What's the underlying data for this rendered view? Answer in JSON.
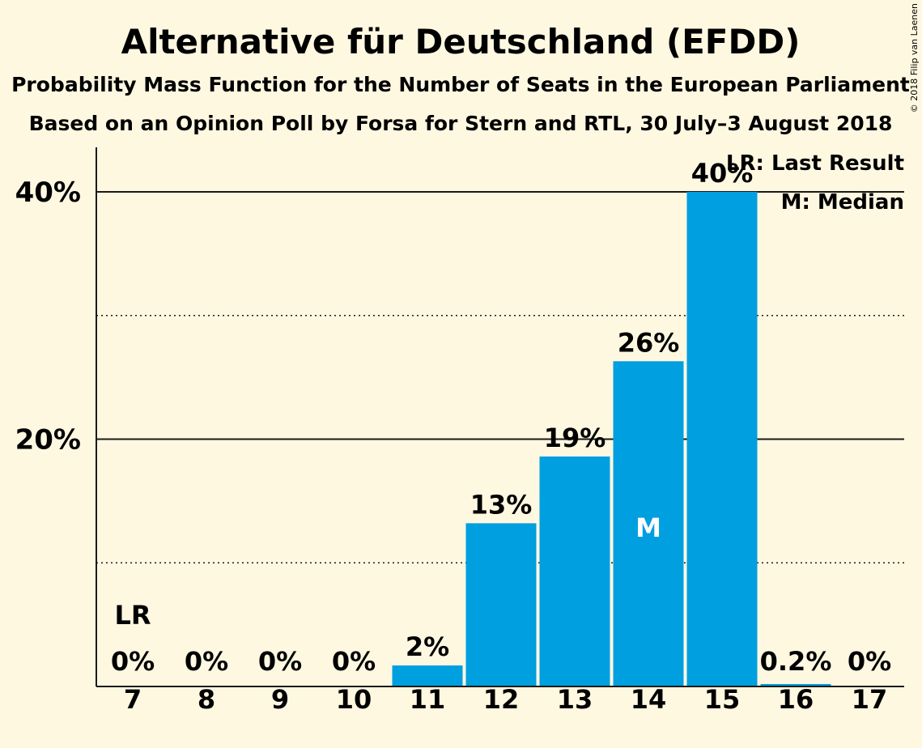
{
  "title": "Alternative für Deutschland (EFDD)",
  "subtitle1": "Probability Mass Function for the Number of Seats in the European Parliament",
  "subtitle2": "Based on an Opinion Poll by Forsa for Stern and RTL, 30 July–3 August 2018",
  "copyright": "© 2018 Filip van Laenen",
  "legend": {
    "last_result": "LR: Last Result",
    "median": "M: Median"
  },
  "colors": {
    "bar": "#009FE0",
    "background": "#FFF8E1",
    "text": "#1a1a1a"
  },
  "chart_data": {
    "type": "bar",
    "categories": [
      "7",
      "8",
      "9",
      "10",
      "11",
      "12",
      "13",
      "14",
      "15",
      "16",
      "17"
    ],
    "values": [
      0,
      0,
      0,
      0,
      1.7,
      13.2,
      18.6,
      26.3,
      40.0,
      0.2,
      0
    ],
    "value_labels": [
      "0%",
      "0%",
      "0%",
      "0%",
      "2%",
      "13%",
      "19%",
      "26%",
      "40%",
      "0.2%",
      "0%"
    ],
    "ylim": [
      0,
      43.6
    ],
    "yticks": [
      {
        "value": 20,
        "label": "20%"
      },
      {
        "value": 40,
        "label": "40%"
      }
    ],
    "dotted_gridlines": [
      10,
      30
    ],
    "last_result": {
      "category": "7",
      "label": "LR"
    },
    "median": {
      "category": "14",
      "label": "M"
    }
  }
}
